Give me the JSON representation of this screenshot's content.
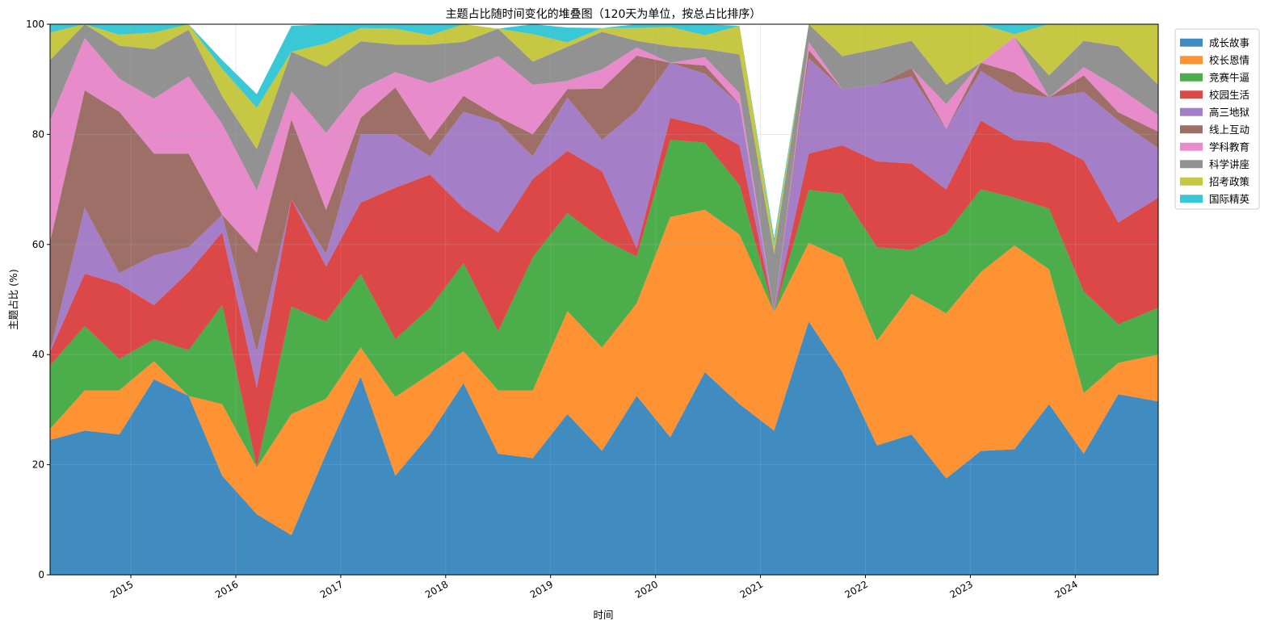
{
  "chart_data": {
    "type": "area",
    "stacked": true,
    "normalized_percent": true,
    "title": "主题占比随时间变化的堆叠图（120天为单位，按总占比排序）",
    "xlabel": "时间",
    "ylabel": "主题占比 (%)",
    "ylim": [
      0,
      100
    ],
    "yticks": [
      0,
      20,
      40,
      60,
      80,
      100
    ],
    "xlim": [
      2014.23,
      2024.79
    ],
    "xticks": [
      2015,
      2016,
      2017,
      2018,
      2019,
      2020,
      2021,
      2022,
      2023,
      2024
    ],
    "xtick_labels": [
      "2015",
      "2016",
      "2017",
      "2018",
      "2019",
      "2020",
      "2021",
      "2022",
      "2023",
      "2024"
    ],
    "grid": true,
    "legend_position": "upper right, outside plot",
    "x": [
      2014.23,
      2014.56,
      2014.89,
      2015.22,
      2015.55,
      2015.87,
      2016.2,
      2016.53,
      2016.86,
      2017.19,
      2017.52,
      2017.85,
      2018.17,
      2018.5,
      2018.83,
      2019.16,
      2019.49,
      2019.82,
      2020.14,
      2020.47,
      2020.8,
      2021.13,
      2021.46,
      2021.78,
      2022.11,
      2022.44,
      2022.77,
      2023.1,
      2023.42,
      2023.75,
      2024.08,
      2024.41,
      2024.79
    ],
    "series": [
      {
        "name": "成长故事",
        "color": "#1f77b4",
        "values": [
          24.5,
          26.2,
          25.5,
          35.5,
          32.5,
          18.0,
          11.0,
          7.2,
          22.0,
          36.0,
          18.0,
          25.5,
          34.8,
          22.0,
          21.2,
          29.2,
          22.5,
          32.5,
          25.0,
          36.8,
          31.0,
          26.2,
          46.0,
          36.8,
          23.5,
          25.5,
          17.5,
          22.5,
          22.8,
          31.0,
          22.0,
          32.8,
          31.5
        ]
      },
      {
        "name": "校长恩情",
        "color": "#ff7f0e",
        "values": [
          2.0,
          7.3,
          8.0,
          3.3,
          0.0,
          13.0,
          8.5,
          22.0,
          10.0,
          5.3,
          14.3,
          11.0,
          5.8,
          11.5,
          12.3,
          18.7,
          18.8,
          16.8,
          40.0,
          29.5,
          30.8,
          21.5,
          14.3,
          20.7,
          19.0,
          25.5,
          30.0,
          32.5,
          37.0,
          24.5,
          11.0,
          5.7,
          8.5
        ]
      },
      {
        "name": "竞赛牛逼",
        "color": "#2ca02c",
        "values": [
          11.5,
          11.7,
          5.7,
          4.0,
          8.3,
          18.0,
          0.0,
          19.5,
          14.0,
          13.3,
          10.5,
          12.0,
          16.0,
          10.7,
          24.2,
          17.8,
          19.7,
          8.5,
          14.0,
          12.2,
          9.0,
          0.0,
          9.6,
          11.7,
          17.0,
          8.0,
          14.5,
          15.0,
          8.7,
          11.0,
          18.5,
          7.0,
          8.5
        ]
      },
      {
        "name": "校园生活",
        "color": "#d62728",
        "values": [
          2.5,
          9.5,
          13.6,
          6.2,
          14.2,
          13.2,
          14.5,
          19.5,
          10.0,
          13.0,
          27.5,
          24.2,
          10.0,
          18.0,
          14.2,
          11.3,
          12.3,
          1.5,
          4.0,
          3.0,
          7.2,
          0.0,
          6.6,
          8.8,
          15.6,
          15.7,
          8.0,
          12.5,
          10.5,
          12.0,
          23.8,
          18.5,
          20.0
        ]
      },
      {
        "name": "高三地狱",
        "color": "#9467bd",
        "values": [
          0.0,
          12.0,
          2.0,
          9.0,
          4.5,
          3.2,
          6.5,
          0.0,
          2.3,
          12.4,
          9.7,
          3.3,
          17.5,
          20.0,
          4.1,
          9.7,
          5.7,
          25.0,
          10.0,
          9.5,
          7.5,
          0.0,
          17.3,
          10.2,
          13.9,
          15.8,
          11.0,
          9.0,
          8.7,
          8.2,
          12.4,
          18.5,
          9.0
        ]
      },
      {
        "name": "线上互动",
        "color": "#8c564b",
        "values": [
          20.0,
          21.3,
          29.3,
          18.5,
          17.0,
          0.0,
          18.0,
          14.5,
          8.0,
          3.0,
          8.5,
          3.0,
          2.9,
          1.0,
          4.0,
          1.5,
          9.3,
          10.0,
          0.0,
          1.5,
          0.0,
          0.0,
          1.5,
          0.0,
          0.0,
          1.5,
          0.0,
          1.5,
          3.5,
          0.0,
          3.0,
          1.5,
          3.0
        ]
      },
      {
        "name": "学科教育",
        "color": "#e377c2",
        "values": [
          22.0,
          9.5,
          6.0,
          10.0,
          14.0,
          16.5,
          11.3,
          5.1,
          14.0,
          5.2,
          2.8,
          10.3,
          4.5,
          11.0,
          9.0,
          1.5,
          3.5,
          1.5,
          0.0,
          1.5,
          2.0,
          0.0,
          1.5,
          0.0,
          0.0,
          0.0,
          4.5,
          0.0,
          6.5,
          0.0,
          1.5,
          4.5,
          3.0
        ]
      },
      {
        "name": "科学讲座",
        "color": "#7f7f7f",
        "values": [
          11.0,
          2.5,
          6.0,
          9.0,
          8.5,
          5.0,
          7.5,
          7.2,
          12.0,
          8.7,
          5.0,
          7.0,
          5.3,
          5.0,
          4.2,
          6.2,
          6.8,
          1.2,
          3.0,
          1.5,
          7.0,
          10.6,
          3.7,
          6.0,
          6.5,
          5.0,
          3.5,
          0.0,
          0.0,
          4.0,
          4.8,
          7.5,
          5.5
        ]
      },
      {
        "name": "招考政策",
        "color": "#bcbd22",
        "values": [
          5.0,
          0.0,
          2.0,
          3.0,
          1.0,
          5.0,
          7.5,
          0.0,
          4.2,
          2.4,
          2.9,
          1.7,
          6.0,
          0.0,
          5.0,
          0.8,
          0.7,
          2.3,
          3.5,
          2.5,
          5.2,
          1.8,
          0.0,
          5.8,
          4.5,
          3.0,
          11.0,
          7.0,
          0.5,
          9.3,
          3.0,
          4.0,
          11.0
        ]
      },
      {
        "name": "国际精英",
        "color": "#17becf",
        "values": [
          1.5,
          0.0,
          1.9,
          1.5,
          0.0,
          1.6,
          2.5,
          4.7,
          3.5,
          0.7,
          0.8,
          2.0,
          1.5,
          0.0,
          2.0,
          2.7,
          0.0,
          0.7,
          0.5,
          3.0,
          0.0,
          1.0,
          0.0,
          0.0,
          0.0,
          0.0,
          0.0,
          0.0,
          1.8,
          0.0,
          0.0,
          0.0,
          0.0
        ]
      }
    ]
  }
}
